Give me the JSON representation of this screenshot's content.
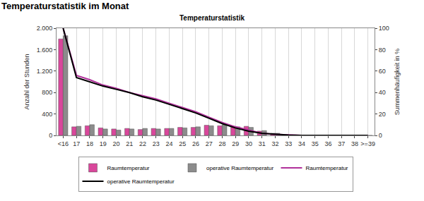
{
  "heading": "Temperaturstatistik im Monat",
  "chart_data": {
    "type": "bar",
    "title": "Temperaturstatistik",
    "y_label": "Anzahl der Stunden",
    "y2_label": "Summenhäufigkeit in %",
    "categories": [
      "<16",
      "17",
      "18",
      "19",
      "20",
      "21",
      "22",
      "23",
      "24",
      "25",
      "26",
      "27",
      "28",
      "29",
      "30",
      "31",
      "32",
      "33",
      "34",
      "35",
      "36",
      "37",
      "38",
      ">=39"
    ],
    "series": [
      {
        "name": "Raumtemperatur",
        "type": "bar",
        "color": "#d9479b",
        "values": [
          1800,
          160,
          180,
          140,
          120,
          130,
          110,
          130,
          130,
          150,
          150,
          190,
          180,
          170,
          170,
          80,
          40,
          10,
          0,
          0,
          0,
          0,
          0,
          0
        ]
      },
      {
        "name": "operative Raumtemperatur",
        "type": "bar",
        "color": "#8c8c8c",
        "values": [
          1860,
          170,
          200,
          120,
          100,
          120,
          130,
          120,
          130,
          140,
          160,
          180,
          200,
          160,
          150,
          90,
          40,
          10,
          0,
          0,
          0,
          0,
          0,
          0
        ]
      },
      {
        "name": "Raumtemperatur",
        "type": "line",
        "axis": "y2",
        "color": "#b0309a",
        "values": [
          100,
          56,
          52,
          47,
          44,
          40,
          37,
          34,
          30,
          26,
          22,
          17,
          12,
          8,
          5,
          2,
          1,
          0.3,
          0,
          0,
          0,
          0,
          0,
          0
        ]
      },
      {
        "name": "operative Raumtemperatur",
        "type": "line",
        "axis": "y2",
        "color": "#000000",
        "values": [
          100,
          54,
          50,
          46,
          43,
          40,
          36,
          33,
          29,
          25,
          21,
          16,
          11,
          7,
          4,
          2,
          1,
          0.3,
          0,
          0,
          0,
          0,
          0,
          0
        ]
      }
    ],
    "ylim": [
      0,
      2000
    ],
    "yticks": [
      0,
      400,
      800,
      {
        "value": 1200,
        "label": "1.200"
      },
      {
        "value": 1600,
        "label": "1.600"
      },
      {
        "value": 2000,
        "label": "2.000"
      }
    ],
    "y2lim": [
      0,
      100
    ],
    "y2ticks": [
      0,
      20,
      40,
      60,
      80,
      100
    ],
    "grid": true,
    "legend": "bottom"
  }
}
